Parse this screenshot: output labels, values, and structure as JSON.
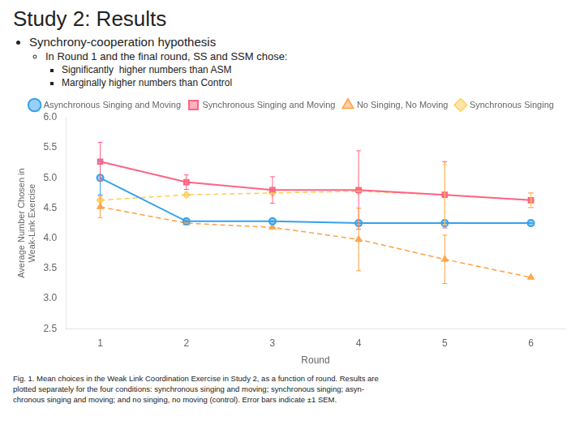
{
  "chart_data": {
    "type": "line",
    "title": "Study 2: Results",
    "annotations": [
      "Synchrony-cooperation hypothesis",
      "In Round 1 and the final round, SS and SSM chose:",
      "Significantly  higher numbers than ASM",
      "Marginally higher numbers than Control",
      "Fig. 1. Mean choices in the Weak Link Coordination Exercise in Study 2, as a function of round. Results are\nplotted separately for the four conditions: synchronous singing and moving; synchronous singing; asyn-\nchronous singing and moving; and no singing, no moving (control). Error bars indicate ±1 SEM."
    ],
    "xlabel": "Round",
    "ylabel": "Average Number Chosen in\nWeak-Link Exercise",
    "x": [
      1,
      2,
      3,
      4,
      5,
      6
    ],
    "xlim": [
      0.6,
      6.4
    ],
    "xticks": [
      1,
      2,
      3,
      4,
      5,
      6
    ],
    "ylim": [
      2.5,
      6.0
    ],
    "yticks": [
      2.5,
      {
        "value": 3.0,
        "label": "3.0"
      },
      3.5,
      {
        "value": 4.0,
        "label": "4.0"
      },
      4.5,
      {
        "value": 5.0,
        "label": "5.0"
      },
      5.5,
      {
        "value": 6.0,
        "label": "6.0"
      }
    ],
    "grid": false,
    "legend": "top",
    "series": [
      {
        "name": "Asynchronous Singing and Moving",
        "values": [
          5.0,
          4.28,
          4.28,
          4.25,
          4.25,
          4.25
        ],
        "yerr": [
          0.28,
          0.0,
          0.0,
          0.0,
          0.0,
          0.0
        ],
        "marker": "circle",
        "line_style": "solid"
      },
      {
        "name": "Synchronous Singing and Moving",
        "values": [
          5.27,
          4.93,
          4.8,
          4.8,
          4.72,
          4.63
        ],
        "yerr": [
          0.32,
          0.12,
          0.22,
          0.65,
          0.55,
          0.12
        ],
        "marker": "square",
        "line_style": "solid"
      },
      {
        "name": "No Singing, No Moving",
        "values": [
          4.52,
          4.25,
          4.18,
          3.98,
          3.65,
          3.35
        ],
        "yerr": [
          0.18,
          0.0,
          0.0,
          0.52,
          0.4,
          0.0
        ],
        "marker": "triangle",
        "line_style": "dashed"
      },
      {
        "name": "Synchronous Singing",
        "values": [
          4.63,
          4.72,
          4.75,
          4.78,
          4.72,
          4.63
        ],
        "yerr": [
          0.0,
          0.0,
          0.0,
          0.0,
          0.5,
          0.12
        ],
        "marker": "diamond",
        "line_style": "dashed"
      }
    ]
  }
}
